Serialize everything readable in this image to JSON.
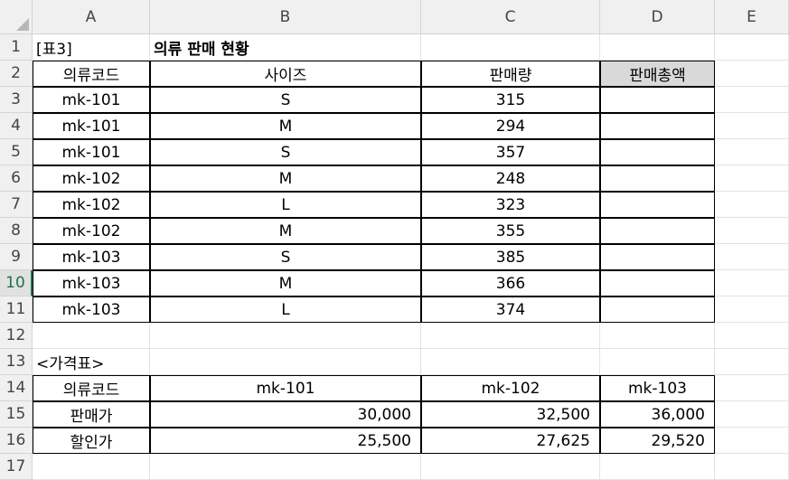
{
  "columns": [
    "A",
    "B",
    "C",
    "D",
    "E"
  ],
  "rows": [
    "1",
    "2",
    "3",
    "4",
    "5",
    "6",
    "7",
    "8",
    "9",
    "10",
    "11",
    "12",
    "13",
    "14",
    "15",
    "16",
    "17"
  ],
  "title": {
    "label": "[표3]",
    "text": "의류 판매 현황"
  },
  "sales_table": {
    "headers": [
      "의류코드",
      "사이즈",
      "판매량",
      "판매총액"
    ],
    "rows": [
      [
        "mk-101",
        "S",
        "315",
        ""
      ],
      [
        "mk-101",
        "M",
        "294",
        ""
      ],
      [
        "mk-101",
        "S",
        "357",
        ""
      ],
      [
        "mk-102",
        "M",
        "248",
        ""
      ],
      [
        "mk-102",
        "L",
        "323",
        ""
      ],
      [
        "mk-102",
        "M",
        "355",
        ""
      ],
      [
        "mk-103",
        "S",
        "385",
        ""
      ],
      [
        "mk-103",
        "M",
        "366",
        ""
      ],
      [
        "mk-103",
        "L",
        "374",
        ""
      ]
    ]
  },
  "price_table": {
    "title": "<가격표>",
    "header_label": "의류코드",
    "codes": [
      "mk-101",
      "mk-102",
      "mk-103"
    ],
    "rows": [
      {
        "label": "판매가",
        "values": [
          "30,000",
          "32,500",
          "36,000"
        ]
      },
      {
        "label": "할인가",
        "values": [
          "25,500",
          "27,625",
          "29,520"
        ]
      }
    ]
  },
  "selected_row": "10",
  "colors": {
    "header_bg": "#f0f0f0",
    "accent": "#217346",
    "gray_cell": "#d9d9d9"
  }
}
